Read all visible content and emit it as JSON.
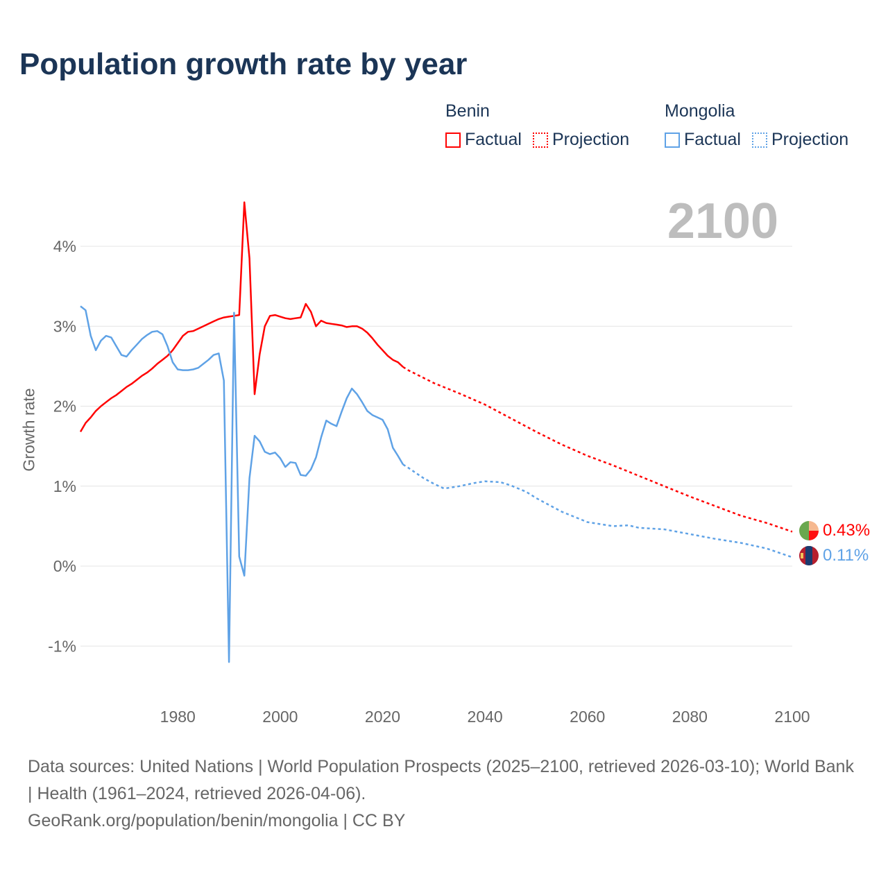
{
  "title": "Population growth rate by year",
  "current_year": "2100",
  "legend": [
    {
      "country": "Benin",
      "factual": "Factual",
      "projection": "Projection",
      "color": "#ff0000"
    },
    {
      "country": "Mongolia",
      "factual": "Factual",
      "projection": "Projection",
      "color": "#5fa2e6"
    }
  ],
  "end_labels": {
    "benin": "0.43%",
    "mongolia": "0.11%"
  },
  "footer": {
    "sources": "Data sources: United Nations | World Population Prospects (2025–2100, retrieved 2026-03-10); World Bank | Health (1961–2024, retrieved 2026-04-06).",
    "credit": "GeoRank.org/population/benin/mongolia | CC BY"
  },
  "chart_data": {
    "type": "line",
    "title": "Population growth rate by year",
    "ylabel": "Growth rate",
    "xlabel": "",
    "xlim": [
      1961,
      2100
    ],
    "ylim": [
      -1.5,
      4.7
    ],
    "x_ticks": [
      1980,
      2000,
      2020,
      2040,
      2060,
      2080,
      2100
    ],
    "x_tick_labels": [
      "1980",
      "2000",
      "2020",
      "2040",
      "2060",
      "2080",
      "2100"
    ],
    "y_ticks": [
      -1,
      0,
      1,
      2,
      3,
      4
    ],
    "y_tick_labels": [
      "-1%",
      "0%",
      "1%",
      "2%",
      "3%",
      "4%"
    ],
    "grid": true,
    "legend_position": "top-right",
    "series": [
      {
        "name": "Benin Factual",
        "color": "#ff0000",
        "dashed": false,
        "x": [
          1961,
          1962,
          1963,
          1964,
          1965,
          1966,
          1967,
          1968,
          1969,
          1970,
          1971,
          1972,
          1973,
          1974,
          1975,
          1976,
          1977,
          1978,
          1979,
          1980,
          1981,
          1982,
          1983,
          1984,
          1985,
          1986,
          1987,
          1988,
          1989,
          1990,
          1991,
          1992,
          1993,
          1994,
          1995,
          1996,
          1997,
          1998,
          1999,
          2000,
          2001,
          2002,
          2003,
          2004,
          2005,
          2006,
          2007,
          2008,
          2009,
          2010,
          2011,
          2012,
          2013,
          2014,
          2015,
          2016,
          2017,
          2018,
          2019,
          2020,
          2021,
          2022,
          2023,
          2024
        ],
        "y": [
          1.68,
          1.79,
          1.86,
          1.94,
          2.0,
          2.05,
          2.1,
          2.14,
          2.19,
          2.24,
          2.28,
          2.33,
          2.38,
          2.42,
          2.47,
          2.53,
          2.58,
          2.63,
          2.7,
          2.79,
          2.88,
          2.93,
          2.94,
          2.97,
          3.0,
          3.03,
          3.06,
          3.09,
          3.11,
          3.12,
          3.13,
          3.14,
          4.55,
          3.85,
          2.15,
          2.65,
          3.0,
          3.13,
          3.14,
          3.12,
          3.1,
          3.09,
          3.1,
          3.11,
          3.28,
          3.18,
          3.0,
          3.07,
          3.04,
          3.03,
          3.02,
          3.01,
          2.99,
          3.0,
          3.0,
          2.97,
          2.92,
          2.85,
          2.77,
          2.7,
          2.63,
          2.58,
          2.55,
          2.49
        ]
      },
      {
        "name": "Benin Projection",
        "color": "#ff0000",
        "dashed": true,
        "x": [
          2024,
          2025,
          2030,
          2035,
          2040,
          2045,
          2050,
          2055,
          2060,
          2065,
          2070,
          2075,
          2080,
          2085,
          2090,
          2095,
          2100
        ],
        "y": [
          2.49,
          2.45,
          2.29,
          2.16,
          2.02,
          1.85,
          1.68,
          1.52,
          1.38,
          1.26,
          1.13,
          1.0,
          0.87,
          0.75,
          0.63,
          0.54,
          0.43
        ]
      },
      {
        "name": "Mongolia Factual",
        "color": "#5fa2e6",
        "dashed": false,
        "x": [
          1961,
          1962,
          1963,
          1964,
          1965,
          1966,
          1967,
          1968,
          1969,
          1970,
          1971,
          1972,
          1973,
          1974,
          1975,
          1976,
          1977,
          1978,
          1979,
          1980,
          1981,
          1982,
          1983,
          1984,
          1985,
          1986,
          1987,
          1988,
          1989,
          1990,
          1991,
          1992,
          1993,
          1994,
          1995,
          1996,
          1997,
          1998,
          1999,
          2000,
          2001,
          2002,
          2003,
          2004,
          2005,
          2006,
          2007,
          2008,
          2009,
          2010,
          2011,
          2012,
          2013,
          2014,
          2015,
          2016,
          2017,
          2018,
          2019,
          2020,
          2021,
          2022,
          2023,
          2024
        ],
        "y": [
          3.25,
          3.2,
          2.88,
          2.7,
          2.82,
          2.88,
          2.86,
          2.75,
          2.64,
          2.62,
          2.7,
          2.77,
          2.84,
          2.89,
          2.93,
          2.94,
          2.9,
          2.75,
          2.55,
          2.46,
          2.45,
          2.45,
          2.46,
          2.48,
          2.53,
          2.58,
          2.64,
          2.66,
          2.32,
          -1.2,
          3.17,
          0.12,
          -0.12,
          1.1,
          1.63,
          1.56,
          1.43,
          1.4,
          1.42,
          1.35,
          1.24,
          1.3,
          1.29,
          1.14,
          1.13,
          1.21,
          1.36,
          1.61,
          1.82,
          1.78,
          1.75,
          1.93,
          2.1,
          2.22,
          2.15,
          2.05,
          1.94,
          1.89,
          1.86,
          1.83,
          1.71,
          1.48,
          1.38,
          1.27
        ]
      },
      {
        "name": "Mongolia Projection",
        "color": "#5fa2e6",
        "dashed": true,
        "x": [
          2024,
          2025,
          2028,
          2030,
          2032,
          2035,
          2038,
          2040,
          2043,
          2045,
          2048,
          2050,
          2055,
          2060,
          2065,
          2068,
          2070,
          2075,
          2080,
          2085,
          2090,
          2095,
          2100
        ],
        "y": [
          1.27,
          1.23,
          1.1,
          1.03,
          0.97,
          1.0,
          1.04,
          1.06,
          1.05,
          1.01,
          0.93,
          0.85,
          0.68,
          0.55,
          0.5,
          0.51,
          0.48,
          0.46,
          0.4,
          0.34,
          0.29,
          0.22,
          0.11
        ]
      }
    ]
  }
}
